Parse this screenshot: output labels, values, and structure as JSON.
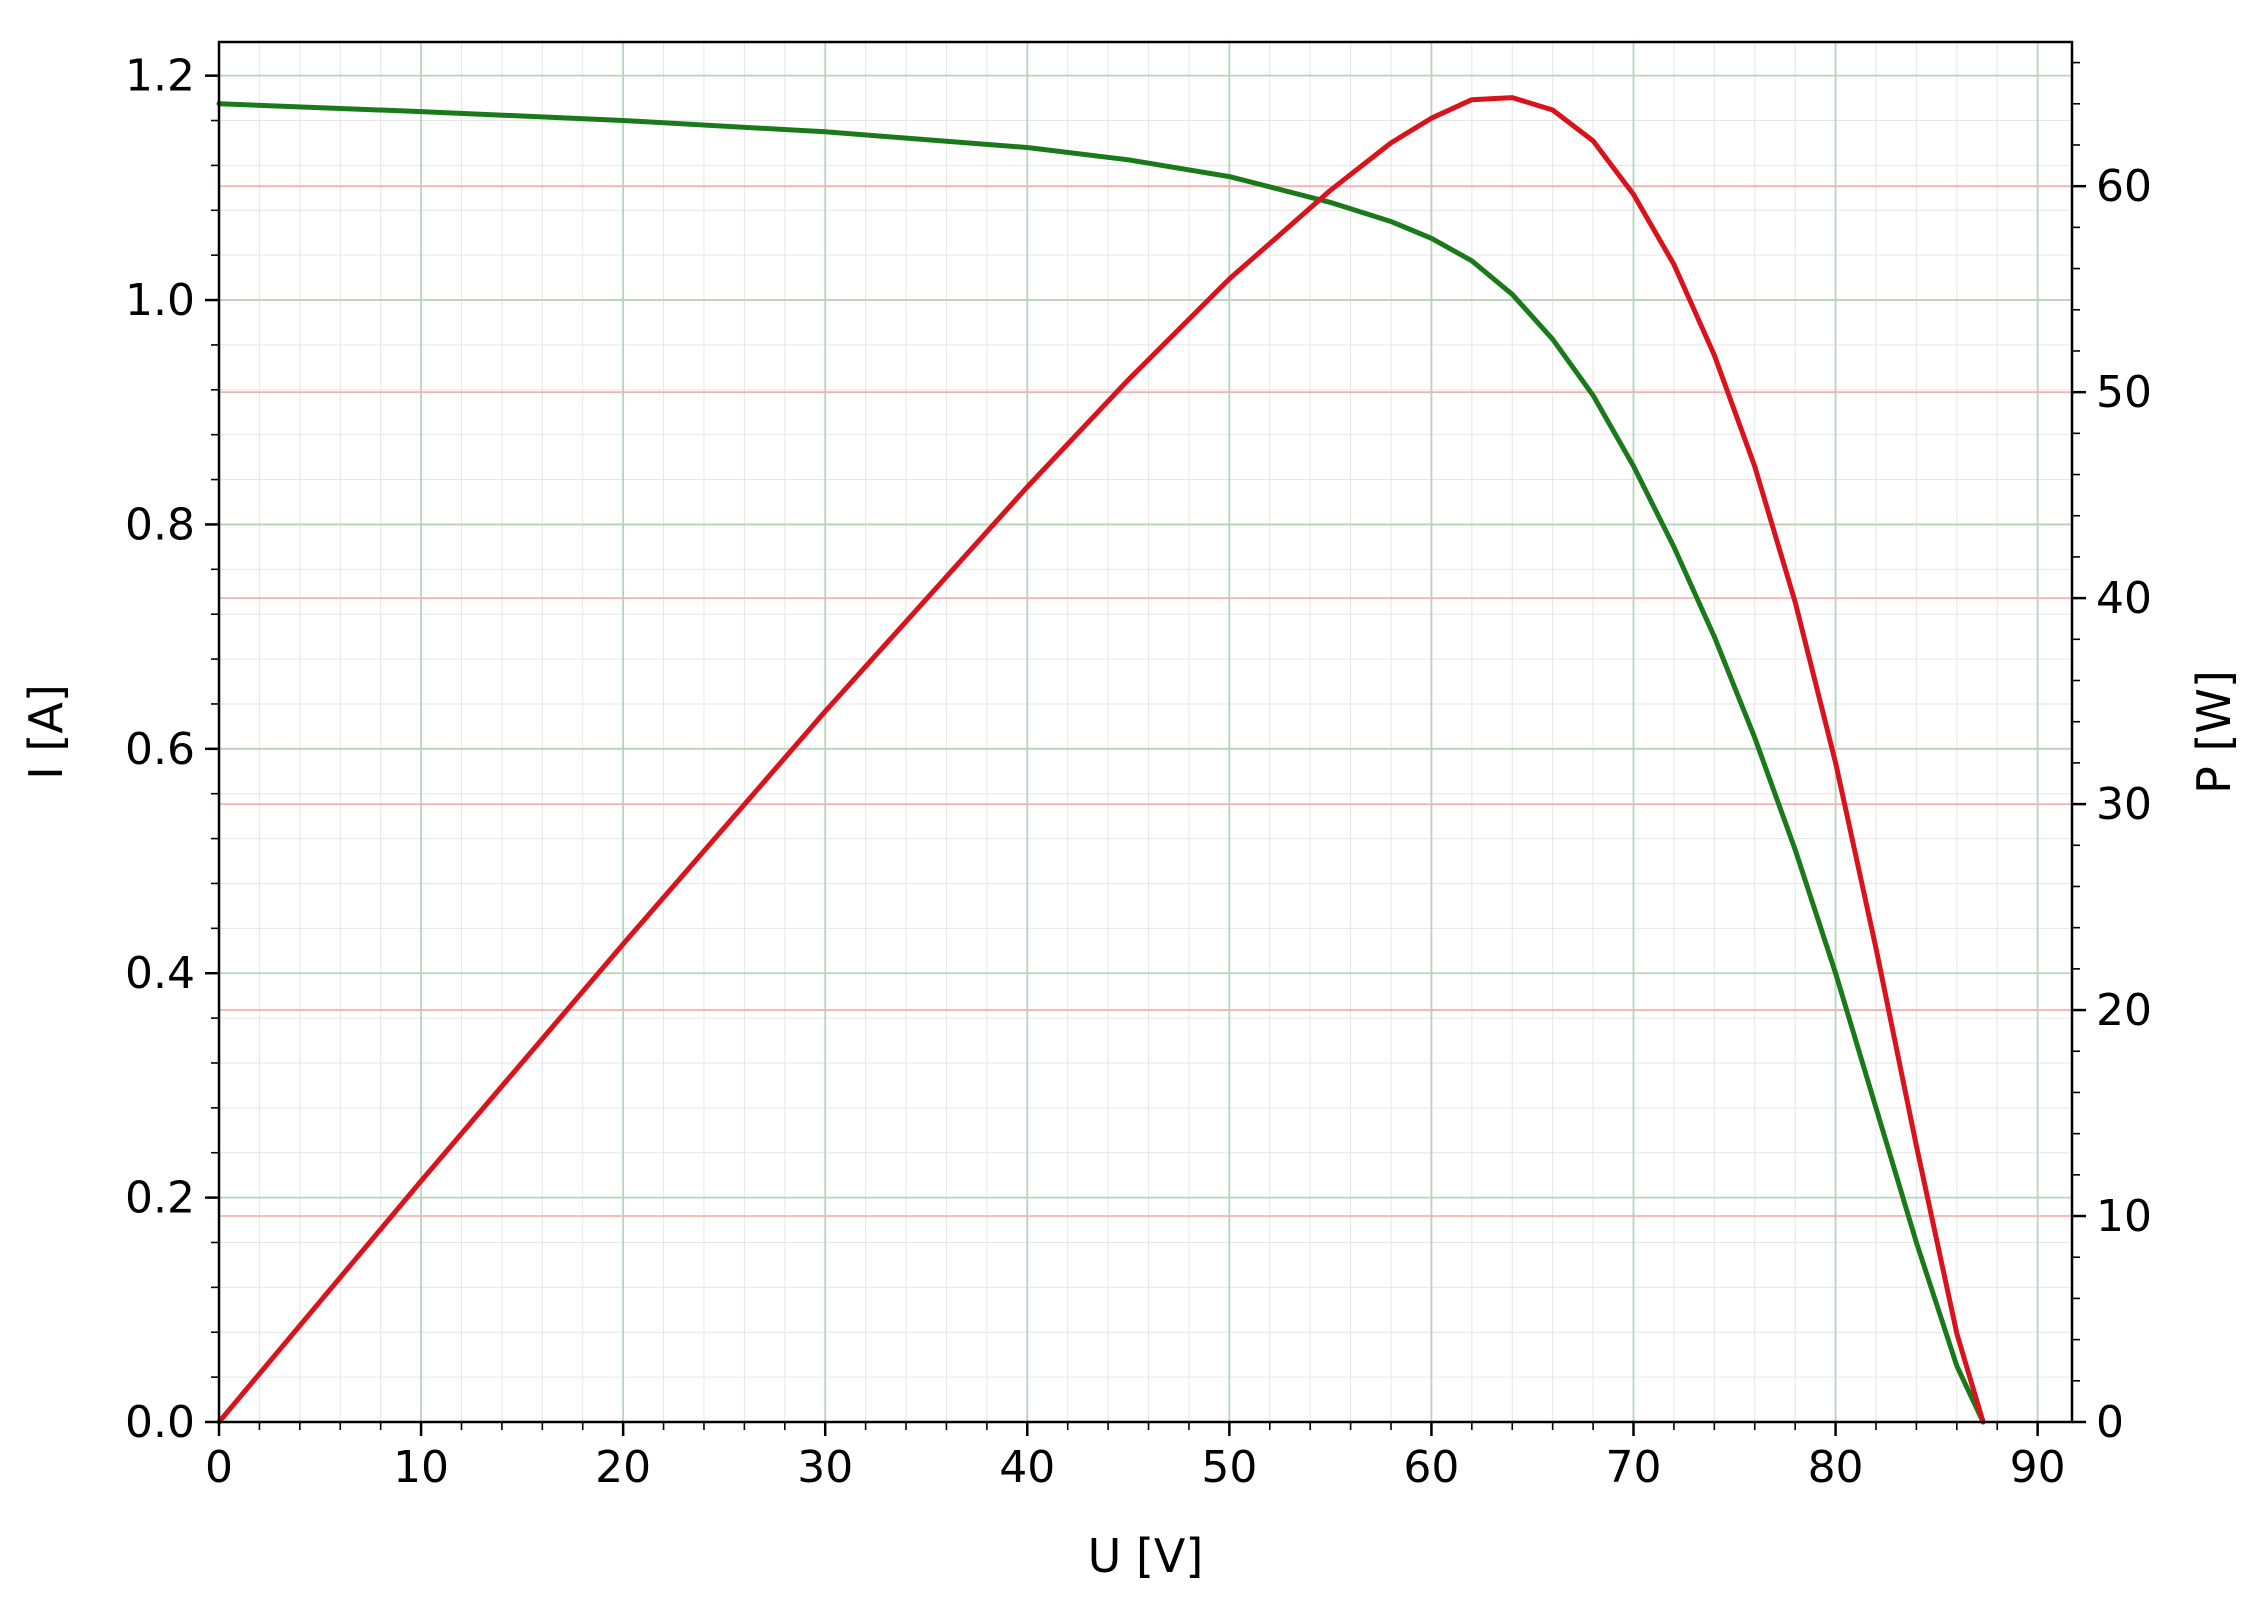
{
  "chart_data": {
    "type": "line",
    "title": "",
    "xlabel": "U [V]",
    "ylabel": "I [A]",
    "y2label": "P [W]",
    "xlim": [
      0,
      91.7
    ],
    "ylim": [
      0,
      1.23
    ],
    "y2lim": [
      0,
      67
    ],
    "xticks": [
      0,
      10,
      20,
      30,
      40,
      50,
      60,
      70,
      80,
      90
    ],
    "yticks": [
      0.0,
      0.2,
      0.4,
      0.6,
      0.8,
      1.0,
      1.2
    ],
    "y2ticks": [
      0,
      10,
      20,
      30,
      40,
      50,
      60
    ],
    "grid": true,
    "legend": "none",
    "colors": {
      "current": "#1a7a1a",
      "power": "#d9121c",
      "grid_major_left": "#b8d4b8",
      "grid_major_right": "#f0b4b4",
      "grid_minor": "#e6e6e6"
    },
    "series": [
      {
        "axis": "left",
        "x": [
          0,
          10,
          20,
          30,
          40,
          45,
          50,
          55,
          58,
          60,
          62,
          64,
          66,
          68,
          70,
          72,
          74,
          76,
          78,
          80,
          82,
          84,
          86,
          87.3
        ],
        "y": [
          1.175,
          1.168,
          1.16,
          1.15,
          1.136,
          1.125,
          1.11,
          1.087,
          1.07,
          1.055,
          1.035,
          1.005,
          0.965,
          0.915,
          0.852,
          0.78,
          0.7,
          0.61,
          0.51,
          0.4,
          0.28,
          0.16,
          0.05,
          0.0
        ]
      },
      {
        "axis": "right",
        "x": [
          0,
          10,
          20,
          30,
          40,
          45,
          50,
          55,
          58,
          60,
          62,
          64,
          66,
          68,
          70,
          72,
          74,
          76,
          78,
          80,
          82,
          84,
          86,
          87.3
        ],
        "y": [
          0,
          11.7,
          23.2,
          34.5,
          45.4,
          50.6,
          55.5,
          59.8,
          62.1,
          63.3,
          64.2,
          64.3,
          63.7,
          62.2,
          59.6,
          56.2,
          51.8,
          46.4,
          39.8,
          32.0,
          23.0,
          13.4,
          4.3,
          0
        ]
      }
    ]
  }
}
